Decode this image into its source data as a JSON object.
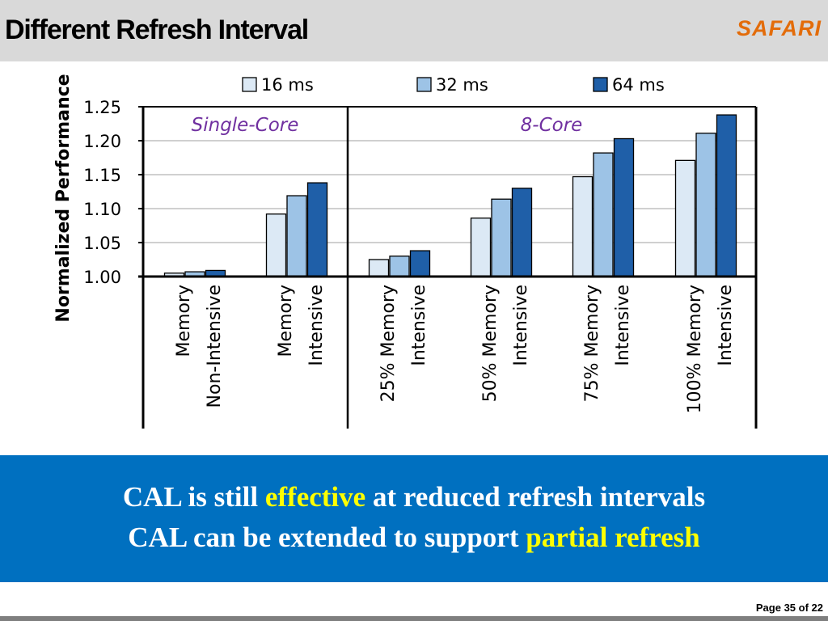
{
  "slide": {
    "title": "Different Refresh Interval",
    "logo": "SAFARI",
    "page_label": "Page 35 of 22"
  },
  "banner": {
    "line1": {
      "pre": "CAL is still",
      "highlight": "effective",
      "post": "at reduced refresh intervals"
    },
    "line2": {
      "pre": "CAL can be extended to support",
      "highlight": "partial refresh"
    },
    "colors": {
      "background": "#0070c0",
      "text": "#ffffff",
      "highlight": "#ffff00"
    }
  },
  "chart_data": {
    "type": "bar",
    "ylabel": "Normalized Performance",
    "ylim": [
      1.0,
      1.25
    ],
    "yticks": [
      1.0,
      1.05,
      1.1,
      1.15,
      1.2,
      1.25
    ],
    "grid": true,
    "legend_position": "top",
    "panels": [
      {
        "label": "Single-Core",
        "categories": [
          0,
          1
        ]
      },
      {
        "label": "8-Core",
        "categories": [
          2,
          3,
          4,
          5
        ]
      }
    ],
    "categories": [
      [
        "Memory",
        "Non-Intensive"
      ],
      [
        "Memory",
        "Intensive"
      ],
      [
        "25% Memory",
        "Intensive"
      ],
      [
        "50% Memory",
        "Intensive"
      ],
      [
        "75% Memory",
        "Intensive"
      ],
      [
        "100% Memory",
        "Intensive"
      ]
    ],
    "series": [
      {
        "name": "16 ms",
        "color": "#dce9f5",
        "values": [
          1.005,
          1.092,
          1.025,
          1.086,
          1.147,
          1.171
        ]
      },
      {
        "name": "32 ms",
        "color": "#9dc3e6",
        "values": [
          1.007,
          1.119,
          1.03,
          1.114,
          1.182,
          1.211
        ]
      },
      {
        "name": "64 ms",
        "color": "#1f5fa8",
        "values": [
          1.009,
          1.138,
          1.038,
          1.13,
          1.203,
          1.238
        ]
      }
    ],
    "panel_label_color": "#7030a0"
  }
}
